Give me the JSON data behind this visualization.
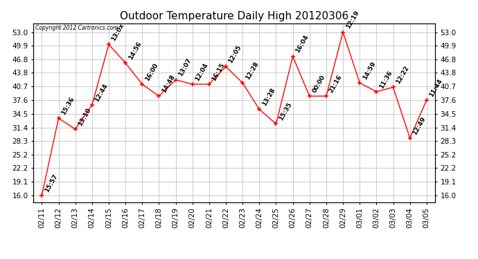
{
  "title": "Outdoor Temperature Daily High 20120306",
  "copyright_text": "Copyright 2012 Cartronics.com",
  "dates": [
    "02/11",
    "02/12",
    "02/13",
    "02/14",
    "02/15",
    "02/16",
    "02/17",
    "02/18",
    "02/19",
    "02/20",
    "02/21",
    "02/22",
    "02/23",
    "02/24",
    "02/25",
    "02/26",
    "02/27",
    "02/28",
    "02/29",
    "03/01",
    "03/02",
    "03/03",
    "03/04",
    "03/05"
  ],
  "values": [
    16.0,
    33.5,
    31.0,
    36.5,
    50.2,
    46.0,
    41.2,
    38.5,
    42.2,
    41.2,
    41.2,
    45.2,
    41.5,
    35.5,
    32.2,
    47.5,
    38.5,
    38.5,
    53.0,
    41.5,
    39.5,
    40.5,
    29.0,
    37.6
  ],
  "time_labels": [
    "15:57",
    "15:36",
    "13:10",
    "12:44",
    "13:0x",
    "14:56",
    "16:00",
    "14:48",
    "13:07",
    "12:04",
    "16:15",
    "12:05",
    "12:28",
    "13:28",
    "15:35",
    "16:04",
    "00:00",
    "21:16",
    "12:19",
    "14:59",
    "11:36",
    "12:22",
    "12:49",
    "11:44"
  ],
  "yticks": [
    16.0,
    19.1,
    22.2,
    25.2,
    28.3,
    31.4,
    34.5,
    37.6,
    40.7,
    43.8,
    46.8,
    49.9,
    53.0
  ],
  "line_color": "#FF0000",
  "marker_color": "#FF0000",
  "background_color": "#FFFFFF",
  "plot_bg_color": "#FFFFFF",
  "grid_color": "#C0C0C0",
  "title_fontsize": 11,
  "tick_fontsize": 7.5,
  "label_fontsize": 6.5
}
